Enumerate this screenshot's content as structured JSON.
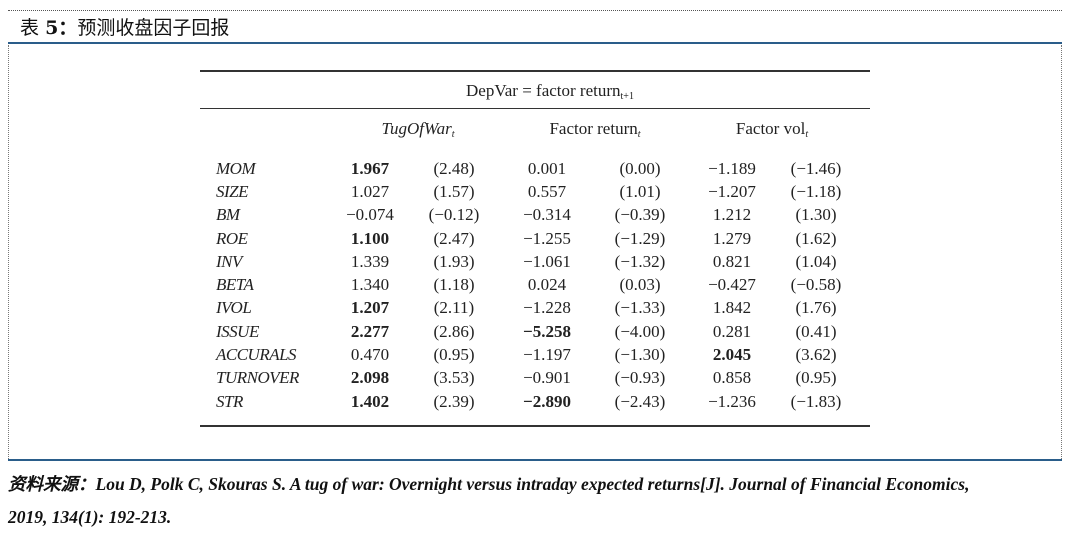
{
  "header": {
    "prefix": "表",
    "number": "5",
    "colon": "：",
    "title": "预测收盘因子回报"
  },
  "table": {
    "depvar_text": "DepVar = factor return",
    "depvar_sub": "t+1",
    "groups": [
      {
        "label": "TugOfWar",
        "sub": "t",
        "italic": true
      },
      {
        "label": "Factor return",
        "sub": "t",
        "italic": false
      },
      {
        "label": "Factor vol",
        "sub": "t",
        "italic": false
      }
    ],
    "rows": [
      {
        "label": "MOM",
        "cells": [
          "1.967",
          "(2.48)",
          "0.001",
          "(0.00)",
          "−1.189",
          "(−1.46)"
        ],
        "bold": [
          0
        ]
      },
      {
        "label": "SIZE",
        "cells": [
          "1.027",
          "(1.57)",
          "0.557",
          "(1.01)",
          "−1.207",
          "(−1.18)"
        ],
        "bold": []
      },
      {
        "label": "BM",
        "cells": [
          "−0.074",
          "(−0.12)",
          "−0.314",
          "(−0.39)",
          "1.212",
          "(1.30)"
        ],
        "bold": []
      },
      {
        "label": "ROE",
        "cells": [
          "1.100",
          "(2.47)",
          "−1.255",
          "(−1.29)",
          "1.279",
          "(1.62)"
        ],
        "bold": [
          0
        ]
      },
      {
        "label": "INV",
        "cells": [
          "1.339",
          "(1.93)",
          "−1.061",
          "(−1.32)",
          "0.821",
          "(1.04)"
        ],
        "bold": []
      },
      {
        "label": "BETA",
        "cells": [
          "1.340",
          "(1.18)",
          "0.024",
          "(0.03)",
          "−0.427",
          "(−0.58)"
        ],
        "bold": []
      },
      {
        "label": "IVOL",
        "cells": [
          "1.207",
          "(2.11)",
          "−1.228",
          "(−1.33)",
          "1.842",
          "(1.76)"
        ],
        "bold": [
          0
        ]
      },
      {
        "label": "ISSUE",
        "cells": [
          "2.277",
          "(2.86)",
          "−5.258",
          "(−4.00)",
          "0.281",
          "(0.41)"
        ],
        "bold": [
          0,
          2
        ]
      },
      {
        "label": "ACCURALS",
        "cells": [
          "0.470",
          "(0.95)",
          "−1.197",
          "(−1.30)",
          "2.045",
          "(3.62)"
        ],
        "bold": [
          4
        ]
      },
      {
        "label": "TURNOVER",
        "cells": [
          "2.098",
          "(3.53)",
          "−0.901",
          "(−0.93)",
          "0.858",
          "(0.95)"
        ],
        "bold": [
          0
        ]
      },
      {
        "label": "STR",
        "cells": [
          "1.402",
          "(2.39)",
          "−2.890",
          "(−2.43)",
          "−1.236",
          "(−1.83)"
        ],
        "bold": [
          0,
          2
        ]
      }
    ]
  },
  "source": {
    "label": "资料来源：",
    "line1": "Lou D, Polk C, Skouras S. A tug of war: Overnight versus intraday expected returns[J]. Journal of Financial Economics,",
    "line2": "2019, 134(1): 192-213."
  }
}
